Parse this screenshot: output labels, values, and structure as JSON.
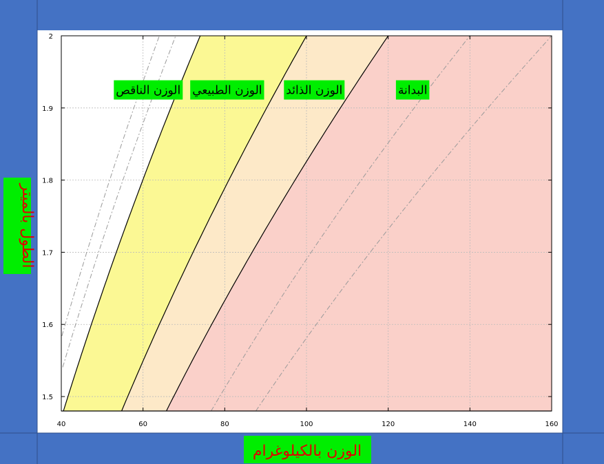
{
  "chart_data": {
    "type": "area",
    "xlabel": "الوزن بالكيلوغرام",
    "ylabel": "الطول بالميتر",
    "xlim": [
      40,
      160
    ],
    "ylim": [
      1.48,
      2.0
    ],
    "x_ticks": [
      "40",
      "60",
      "80",
      "100",
      "120",
      "140",
      "160"
    ],
    "y_ticks": [
      "1.5",
      "1.6",
      "1.7",
      "1.8",
      "1.9",
      "2"
    ],
    "grid": true,
    "band_boundaries_bmi": [
      18.5,
      25,
      30
    ],
    "reference_lines_bmi": [
      16,
      17,
      35,
      40
    ],
    "bands": [
      {
        "label": "الوزن الناقص",
        "bmi_range": [
          0,
          18.5
        ],
        "color": "#ffffff"
      },
      {
        "label": "الوزن الطبيعي",
        "bmi_range": [
          18.5,
          25
        ],
        "color": "#fbf894"
      },
      {
        "label": "الوزن الذائد",
        "bmi_range": [
          25,
          30
        ],
        "color": "#fde9c8"
      },
      {
        "label": "البدانة",
        "bmi_range": [
          30,
          100
        ],
        "color": "#fad0c9"
      }
    ],
    "colors": {
      "label_background": "#00ee00",
      "axis_title_text": "#e00000",
      "frame_background": "#4472c4"
    }
  }
}
